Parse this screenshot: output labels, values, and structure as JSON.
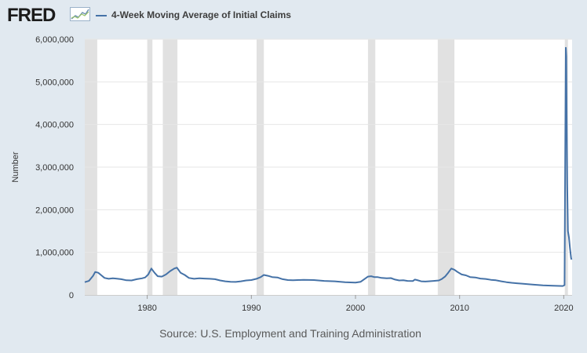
{
  "header": {
    "logo_text": "FRED",
    "legend_label": "4-Week Moving Average of Initial Claims",
    "series_color": "#4572a7",
    "logo_graph_icon": "line-graph-icon"
  },
  "source_text": "Source: U.S. Employment and Training Administration",
  "chart_data": {
    "type": "line",
    "title": "",
    "xlabel": "",
    "ylabel": "Number",
    "xlim": [
      1974.0,
      2020.8
    ],
    "ylim": [
      0,
      6000000
    ],
    "x_ticks": [
      1980,
      1990,
      2000,
      2010,
      2020
    ],
    "x_tick_labels": [
      "1980",
      "1990",
      "2000",
      "2010",
      "2020"
    ],
    "y_ticks": [
      0,
      1000000,
      2000000,
      3000000,
      4000000,
      5000000,
      6000000
    ],
    "y_tick_labels": [
      "0",
      "1,000,000",
      "2,000,000",
      "3,000,000",
      "4,000,000",
      "5,000,000",
      "6,000,000"
    ],
    "grid": "horizontal",
    "legend": "top-left",
    "colors": {
      "line": "#4572a7",
      "recession": "#e1e1e1",
      "grid": "#e6e6e6",
      "plot_bg": "#ffffff"
    },
    "recessions": [
      [
        1973.9,
        1975.2
      ],
      [
        1980.0,
        1980.5
      ],
      [
        1981.5,
        1982.9
      ],
      [
        1990.5,
        1991.2
      ],
      [
        2001.2,
        2001.9
      ],
      [
        2007.9,
        2009.5
      ],
      [
        2020.1,
        2020.4
      ]
    ],
    "series": [
      {
        "name": "4-Week Moving Average of Initial Claims",
        "x": [
          1974.0,
          1974.4,
          1974.8,
          1975.0,
          1975.3,
          1975.6,
          1975.9,
          1976.3,
          1976.7,
          1977.0,
          1977.5,
          1978.0,
          1978.5,
          1979.0,
          1979.5,
          1979.8,
          1980.1,
          1980.4,
          1980.7,
          1981.0,
          1981.4,
          1981.8,
          1982.2,
          1982.6,
          1982.85,
          1983.2,
          1983.6,
          1984.0,
          1984.5,
          1985.0,
          1985.5,
          1986.0,
          1986.5,
          1987.0,
          1987.5,
          1988.0,
          1988.5,
          1989.0,
          1989.5,
          1990.0,
          1990.5,
          1990.9,
          1991.2,
          1991.6,
          1992.0,
          1992.5,
          1993.0,
          1993.5,
          1994.0,
          1995.0,
          1996.0,
          1997.0,
          1998.0,
          1999.0,
          2000.0,
          2000.5,
          2000.9,
          2001.2,
          2001.5,
          2001.8,
          2002.1,
          2002.5,
          2003.0,
          2003.4,
          2003.8,
          2004.2,
          2004.6,
          2005.0,
          2005.5,
          2005.7,
          2005.9,
          2006.3,
          2006.7,
          2007.0,
          2007.5,
          2008.0,
          2008.3,
          2008.6,
          2008.9,
          2009.2,
          2009.5,
          2009.8,
          2010.2,
          2010.6,
          2011.0,
          2011.5,
          2012.0,
          2012.5,
          2013.0,
          2013.5,
          2014.0,
          2014.5,
          2015.0,
          2015.5,
          2016.0,
          2017.0,
          2018.0,
          2019.0,
          2019.9,
          2020.08,
          2020.14,
          2020.2,
          2020.24,
          2020.28,
          2020.33,
          2020.4,
          2020.5,
          2020.6,
          2020.7,
          2020.75
        ],
        "y": [
          300000,
          330000,
          450000,
          540000,
          520000,
          460000,
          400000,
          380000,
          390000,
          385000,
          370000,
          345000,
          340000,
          370000,
          390000,
          410000,
          480000,
          620000,
          520000,
          440000,
          430000,
          480000,
          560000,
          620000,
          640000,
          520000,
          470000,
          400000,
          380000,
          390000,
          385000,
          380000,
          370000,
          340000,
          320000,
          310000,
          305000,
          320000,
          340000,
          350000,
          380000,
          420000,
          470000,
          450000,
          420000,
          410000,
          370000,
          350000,
          345000,
          355000,
          350000,
          330000,
          320000,
          300000,
          290000,
          310000,
          380000,
          430000,
          440000,
          420000,
          420000,
          400000,
          390000,
          395000,
          360000,
          340000,
          345000,
          330000,
          325000,
          360000,
          350000,
          320000,
          315000,
          320000,
          330000,
          340000,
          375000,
          430000,
          520000,
          620000,
          590000,
          540000,
          480000,
          460000,
          420000,
          410000,
          385000,
          375000,
          355000,
          345000,
          320000,
          300000,
          285000,
          275000,
          265000,
          245000,
          225000,
          215000,
          210000,
          230000,
          3100000,
          5800000,
          5600000,
          4200000,
          2600000,
          1500000,
          1350000,
          1100000,
          870000,
          830000
        ]
      }
    ]
  }
}
